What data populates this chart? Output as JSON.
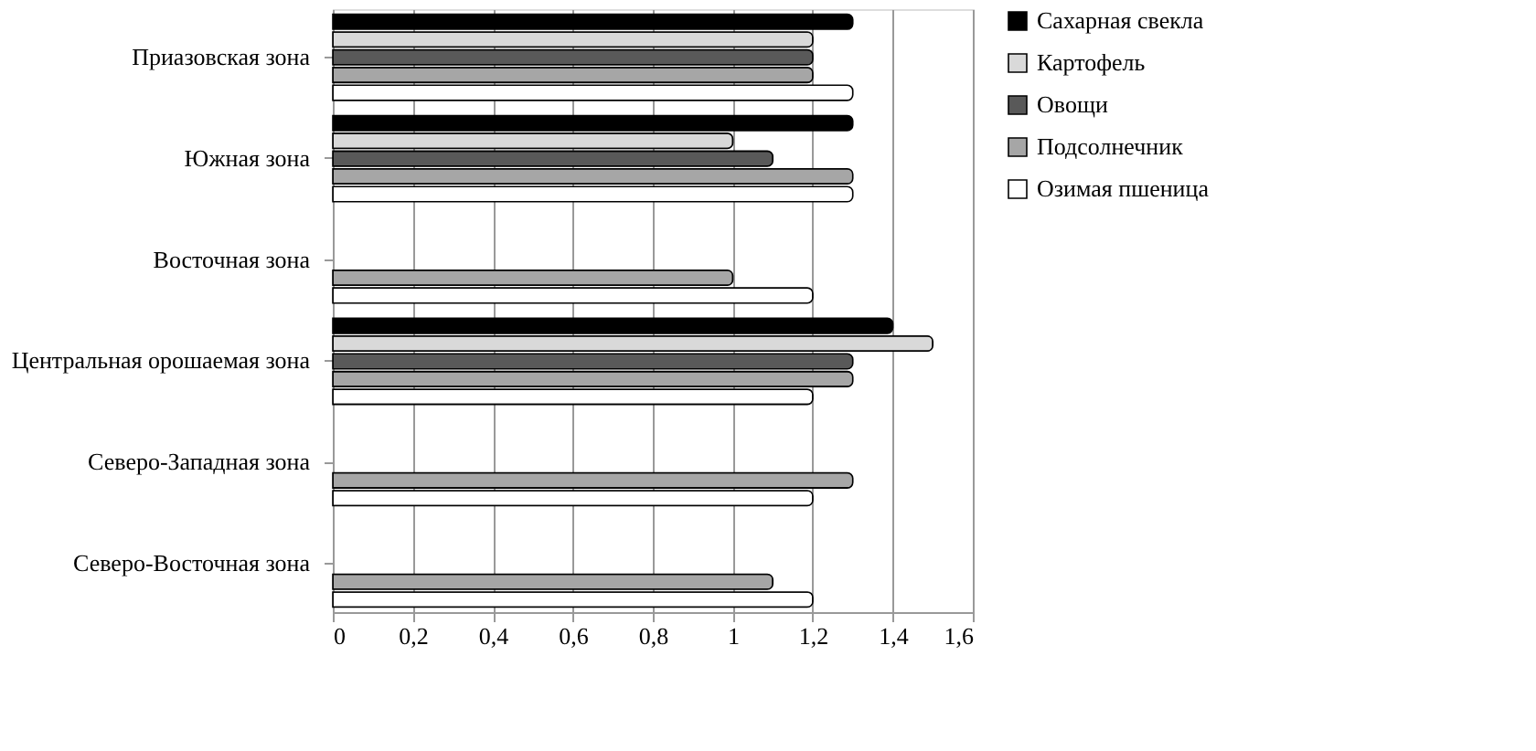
{
  "chart_data": {
    "type": "bar",
    "orientation": "horizontal",
    "categories": [
      "Приазовская зона",
      "Южная зона",
      "Восточная зона",
      "Центральная орошаемая зона",
      "Северо-Западная зона",
      "Северо-Восточная зона"
    ],
    "series": [
      {
        "name": "Сахарная свекла",
        "color": "#000000",
        "values": [
          1.3,
          1.3,
          0,
          1.4,
          0,
          0
        ]
      },
      {
        "name": "Картофель",
        "color": "#d9d9d9",
        "values": [
          1.2,
          1.0,
          0,
          1.5,
          0,
          0
        ]
      },
      {
        "name": "Овощи",
        "color": "#595959",
        "values": [
          1.2,
          1.1,
          0,
          1.3,
          0,
          0
        ]
      },
      {
        "name": "Подсолнечник",
        "color": "#a6a6a6",
        "values": [
          1.2,
          1.3,
          1.0,
          1.3,
          1.3,
          1.1
        ]
      },
      {
        "name": "Озимая пшеница",
        "color": "#ffffff",
        "values": [
          1.3,
          1.3,
          1.2,
          1.2,
          1.2,
          1.2
        ]
      }
    ],
    "xlim": [
      0,
      1.6
    ],
    "xticks": [
      0,
      {
        "value": 0.2,
        "label": "0,2"
      },
      {
        "value": 0.4,
        "label": "0,4"
      },
      {
        "value": 0.6,
        "label": "0,6"
      },
      {
        "value": 0.8,
        "label": "0,8"
      },
      1,
      {
        "value": 1.2,
        "label": "1,2"
      },
      {
        "value": 1.4,
        "label": "1,4"
      },
      {
        "value": 1.6,
        "label": "1,6"
      }
    ],
    "grid": "x",
    "legend": "right"
  }
}
